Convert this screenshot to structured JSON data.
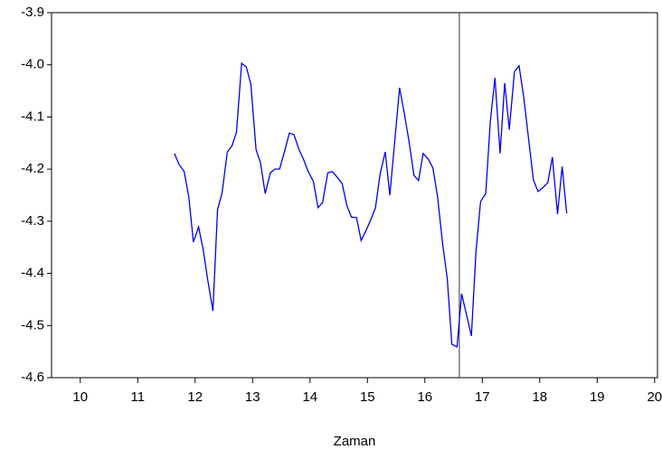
{
  "chart_data": {
    "type": "line",
    "xlabel": "Zaman",
    "x": [
      11.64,
      11.72,
      11.81,
      11.89,
      11.97,
      12.06,
      12.14,
      12.22,
      12.31,
      12.39,
      12.47,
      12.56,
      12.64,
      12.72,
      12.81,
      12.89,
      12.97,
      13.06,
      13.14,
      13.22,
      13.31,
      13.39,
      13.47,
      13.56,
      13.64,
      13.72,
      13.81,
      13.89,
      13.97,
      14.06,
      14.14,
      14.22,
      14.31,
      14.39,
      14.47,
      14.56,
      14.64,
      14.72,
      14.81,
      14.89,
      14.97,
      15.06,
      15.14,
      15.22,
      15.31,
      15.39,
      15.47,
      15.56,
      15.64,
      15.72,
      15.81,
      15.89,
      15.97,
      16.06,
      16.14,
      16.22,
      16.31,
      16.39,
      16.47,
      16.56,
      16.64,
      16.72,
      16.81,
      16.89,
      16.97,
      17.06,
      17.14,
      17.22,
      17.31,
      17.39,
      17.47,
      17.56,
      17.64,
      17.72,
      17.81,
      17.89,
      17.97,
      18.06,
      18.14,
      18.22,
      18.31,
      18.39,
      18.47
    ],
    "series": [
      {
        "color": "#0000ee",
        "values": [
          -4.17,
          -4.191,
          -4.205,
          -4.254,
          -4.34,
          -4.311,
          -4.354,
          -4.413,
          -4.472,
          -4.278,
          -4.245,
          -4.167,
          -4.156,
          -4.129,
          -3.997,
          -4.004,
          -4.037,
          -4.162,
          -4.189,
          -4.247,
          -4.207,
          -4.2,
          -4.2,
          -4.165,
          -4.131,
          -4.134,
          -4.163,
          -4.182,
          -4.205,
          -4.224,
          -4.274,
          -4.264,
          -4.207,
          -4.205,
          -4.215,
          -4.228,
          -4.269,
          -4.292,
          -4.293,
          -4.337,
          -4.319,
          -4.297,
          -4.274,
          -4.21,
          -4.167,
          -4.25,
          -4.153,
          -4.044,
          -4.092,
          -4.144,
          -4.212,
          -4.222,
          -4.17,
          -4.181,
          -4.198,
          -4.252,
          -4.344,
          -4.41,
          -4.536,
          -4.541,
          -4.439,
          -4.477,
          -4.52,
          -4.358,
          -4.262,
          -4.247,
          -4.108,
          -4.025,
          -4.17,
          -4.035,
          -4.124,
          -4.013,
          -4.002,
          -4.061,
          -4.146,
          -4.221,
          -4.243,
          -4.235,
          -4.226,
          -4.177,
          -4.286,
          -4.195,
          -4.285
        ]
      }
    ],
    "vline": 16.6,
    "xlim": [
      9.5,
      20.05
    ],
    "xticks": [
      10,
      11,
      12,
      13,
      14,
      15,
      16,
      17,
      18,
      19,
      20
    ],
    "ylim": [
      -4.6,
      -3.9
    ],
    "yticks": [
      -3.9,
      {
        "value": -4,
        "label": "-4.0"
      },
      -4.1,
      -4.2,
      -4.3,
      -4.4,
      -4.5,
      -4.6
    ]
  }
}
